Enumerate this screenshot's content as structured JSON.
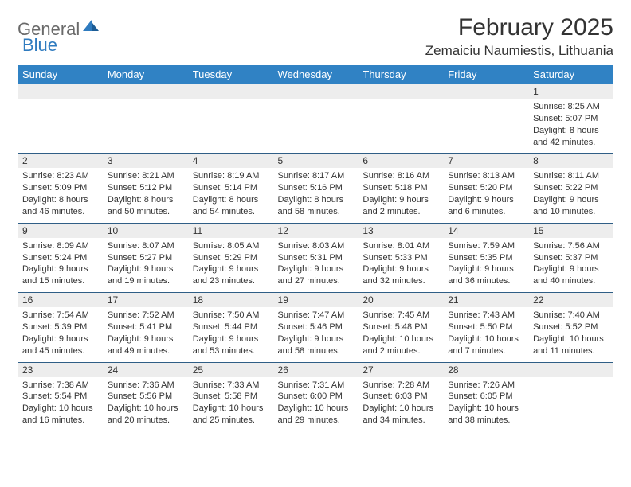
{
  "logo": {
    "general": "General",
    "blue": "Blue"
  },
  "title": "February 2025",
  "location": "Zemaiciu Naumiestis, Lithuania",
  "colors": {
    "header_bg": "#3082c4",
    "header_text": "#ffffff",
    "daynum_bg": "#ededed",
    "rule": "#2f5e86",
    "logo_gray": "#6a6a6a",
    "logo_blue": "#2f7bbf",
    "body_text": "#333333"
  },
  "weekdays": [
    "Sunday",
    "Monday",
    "Tuesday",
    "Wednesday",
    "Thursday",
    "Friday",
    "Saturday"
  ],
  "weeks": [
    [
      {
        "num": "",
        "sunrise": "",
        "sunset": "",
        "daylight": ""
      },
      {
        "num": "",
        "sunrise": "",
        "sunset": "",
        "daylight": ""
      },
      {
        "num": "",
        "sunrise": "",
        "sunset": "",
        "daylight": ""
      },
      {
        "num": "",
        "sunrise": "",
        "sunset": "",
        "daylight": ""
      },
      {
        "num": "",
        "sunrise": "",
        "sunset": "",
        "daylight": ""
      },
      {
        "num": "",
        "sunrise": "",
        "sunset": "",
        "daylight": ""
      },
      {
        "num": "1",
        "sunrise": "Sunrise: 8:25 AM",
        "sunset": "Sunset: 5:07 PM",
        "daylight": "Daylight: 8 hours and 42 minutes."
      }
    ],
    [
      {
        "num": "2",
        "sunrise": "Sunrise: 8:23 AM",
        "sunset": "Sunset: 5:09 PM",
        "daylight": "Daylight: 8 hours and 46 minutes."
      },
      {
        "num": "3",
        "sunrise": "Sunrise: 8:21 AM",
        "sunset": "Sunset: 5:12 PM",
        "daylight": "Daylight: 8 hours and 50 minutes."
      },
      {
        "num": "4",
        "sunrise": "Sunrise: 8:19 AM",
        "sunset": "Sunset: 5:14 PM",
        "daylight": "Daylight: 8 hours and 54 minutes."
      },
      {
        "num": "5",
        "sunrise": "Sunrise: 8:17 AM",
        "sunset": "Sunset: 5:16 PM",
        "daylight": "Daylight: 8 hours and 58 minutes."
      },
      {
        "num": "6",
        "sunrise": "Sunrise: 8:16 AM",
        "sunset": "Sunset: 5:18 PM",
        "daylight": "Daylight: 9 hours and 2 minutes."
      },
      {
        "num": "7",
        "sunrise": "Sunrise: 8:13 AM",
        "sunset": "Sunset: 5:20 PM",
        "daylight": "Daylight: 9 hours and 6 minutes."
      },
      {
        "num": "8",
        "sunrise": "Sunrise: 8:11 AM",
        "sunset": "Sunset: 5:22 PM",
        "daylight": "Daylight: 9 hours and 10 minutes."
      }
    ],
    [
      {
        "num": "9",
        "sunrise": "Sunrise: 8:09 AM",
        "sunset": "Sunset: 5:24 PM",
        "daylight": "Daylight: 9 hours and 15 minutes."
      },
      {
        "num": "10",
        "sunrise": "Sunrise: 8:07 AM",
        "sunset": "Sunset: 5:27 PM",
        "daylight": "Daylight: 9 hours and 19 minutes."
      },
      {
        "num": "11",
        "sunrise": "Sunrise: 8:05 AM",
        "sunset": "Sunset: 5:29 PM",
        "daylight": "Daylight: 9 hours and 23 minutes."
      },
      {
        "num": "12",
        "sunrise": "Sunrise: 8:03 AM",
        "sunset": "Sunset: 5:31 PM",
        "daylight": "Daylight: 9 hours and 27 minutes."
      },
      {
        "num": "13",
        "sunrise": "Sunrise: 8:01 AM",
        "sunset": "Sunset: 5:33 PM",
        "daylight": "Daylight: 9 hours and 32 minutes."
      },
      {
        "num": "14",
        "sunrise": "Sunrise: 7:59 AM",
        "sunset": "Sunset: 5:35 PM",
        "daylight": "Daylight: 9 hours and 36 minutes."
      },
      {
        "num": "15",
        "sunrise": "Sunrise: 7:56 AM",
        "sunset": "Sunset: 5:37 PM",
        "daylight": "Daylight: 9 hours and 40 minutes."
      }
    ],
    [
      {
        "num": "16",
        "sunrise": "Sunrise: 7:54 AM",
        "sunset": "Sunset: 5:39 PM",
        "daylight": "Daylight: 9 hours and 45 minutes."
      },
      {
        "num": "17",
        "sunrise": "Sunrise: 7:52 AM",
        "sunset": "Sunset: 5:41 PM",
        "daylight": "Daylight: 9 hours and 49 minutes."
      },
      {
        "num": "18",
        "sunrise": "Sunrise: 7:50 AM",
        "sunset": "Sunset: 5:44 PM",
        "daylight": "Daylight: 9 hours and 53 minutes."
      },
      {
        "num": "19",
        "sunrise": "Sunrise: 7:47 AM",
        "sunset": "Sunset: 5:46 PM",
        "daylight": "Daylight: 9 hours and 58 minutes."
      },
      {
        "num": "20",
        "sunrise": "Sunrise: 7:45 AM",
        "sunset": "Sunset: 5:48 PM",
        "daylight": "Daylight: 10 hours and 2 minutes."
      },
      {
        "num": "21",
        "sunrise": "Sunrise: 7:43 AM",
        "sunset": "Sunset: 5:50 PM",
        "daylight": "Daylight: 10 hours and 7 minutes."
      },
      {
        "num": "22",
        "sunrise": "Sunrise: 7:40 AM",
        "sunset": "Sunset: 5:52 PM",
        "daylight": "Daylight: 10 hours and 11 minutes."
      }
    ],
    [
      {
        "num": "23",
        "sunrise": "Sunrise: 7:38 AM",
        "sunset": "Sunset: 5:54 PM",
        "daylight": "Daylight: 10 hours and 16 minutes."
      },
      {
        "num": "24",
        "sunrise": "Sunrise: 7:36 AM",
        "sunset": "Sunset: 5:56 PM",
        "daylight": "Daylight: 10 hours and 20 minutes."
      },
      {
        "num": "25",
        "sunrise": "Sunrise: 7:33 AM",
        "sunset": "Sunset: 5:58 PM",
        "daylight": "Daylight: 10 hours and 25 minutes."
      },
      {
        "num": "26",
        "sunrise": "Sunrise: 7:31 AM",
        "sunset": "Sunset: 6:00 PM",
        "daylight": "Daylight: 10 hours and 29 minutes."
      },
      {
        "num": "27",
        "sunrise": "Sunrise: 7:28 AM",
        "sunset": "Sunset: 6:03 PM",
        "daylight": "Daylight: 10 hours and 34 minutes."
      },
      {
        "num": "28",
        "sunrise": "Sunrise: 7:26 AM",
        "sunset": "Sunset: 6:05 PM",
        "daylight": "Daylight: 10 hours and 38 minutes."
      },
      {
        "num": "",
        "sunrise": "",
        "sunset": "",
        "daylight": ""
      }
    ]
  ]
}
